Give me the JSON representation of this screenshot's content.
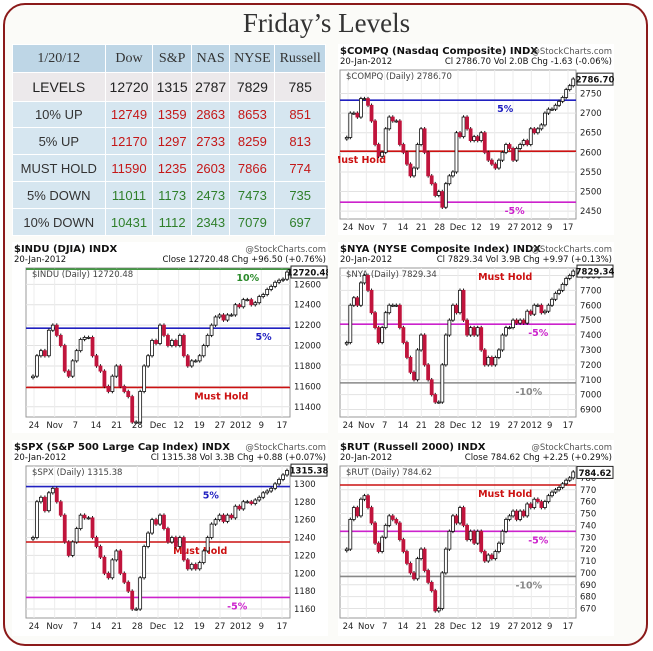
{
  "title": "Friday’s Levels",
  "table": {
    "date": "1/20/12",
    "headers": [
      "Dow",
      "S&P",
      "NAS",
      "NYSE",
      "Russell"
    ],
    "rows": [
      {
        "label": "LEVELS",
        "values": [
          "12720",
          "1315",
          "2787",
          "7829",
          "785"
        ],
        "type": "level"
      },
      {
        "label": "10% UP",
        "values": [
          "12749",
          "1359",
          "2863",
          "8653",
          "851"
        ],
        "type": "up"
      },
      {
        "label": "5% UP",
        "values": [
          "12170",
          "1297",
          "2733",
          "8259",
          "813"
        ],
        "type": "up"
      },
      {
        "label": "MUST HOLD",
        "values": [
          "11590",
          "1235",
          "2603",
          "7866",
          "774"
        ],
        "type": "up"
      },
      {
        "label": "5% DOWN",
        "values": [
          "11011",
          "1173",
          "2473",
          "7473",
          "735"
        ],
        "type": "down"
      },
      {
        "label": "10% DOWN",
        "values": [
          "10431",
          "1112",
          "2343",
          "7079",
          "697"
        ],
        "type": "down"
      }
    ]
  },
  "chart_data": [
    {
      "type": "candlestick",
      "symbol": "$COMPQ",
      "title": "$COMPQ (Nasdaq Composite) INDX",
      "source": "@StockCharts.com",
      "date": "20-Jan-2012",
      "stats": "Cl 2786.70  Vol 2.0B  Chg -1.63 (-0.06%)",
      "legend": "$COMPQ (Daily) 2786.70",
      "last": 2786.7,
      "last_label": "2786.70",
      "ylim": [
        2430,
        2810
      ],
      "yticks": [
        2450,
        2500,
        2550,
        2600,
        2650,
        2700,
        2750
      ],
      "xticks": [
        "24",
        "Nov",
        "7",
        "14",
        "21",
        "28",
        "Dec",
        "12",
        "19",
        "27",
        "2012",
        "9",
        "17"
      ],
      "levels": [
        {
          "value": 2733,
          "label": "5%",
          "color": "#2020c0"
        },
        {
          "value": 2603,
          "label": "Must Hold",
          "color": "#cc1111"
        },
        {
          "value": 2473,
          "label": "-5%",
          "color": "#cc22cc"
        }
      ],
      "closes": [
        2638,
        2700,
        2700,
        2690,
        2737,
        2737,
        2720,
        2680,
        2620,
        2590,
        2600,
        2660,
        2690,
        2680,
        2680,
        2620,
        2600,
        2570,
        2540,
        2560,
        2620,
        2660,
        2600,
        2540,
        2520,
        2490,
        2500,
        2460,
        2520,
        2540,
        2550,
        2650,
        2640,
        2690,
        2660,
        2630,
        2640,
        2630,
        2650,
        2600,
        2580,
        2570,
        2560,
        2580,
        2600,
        2620,
        2610,
        2580,
        2610,
        2620,
        2630,
        2620,
        2660,
        2650,
        2660,
        2670,
        2700,
        2710,
        2710,
        2720,
        2730,
        2740,
        2760,
        2770,
        2787
      ]
    },
    {
      "type": "candlestick",
      "symbol": "$INDU",
      "title": "$INDU (DJIA) INDX",
      "source": "@StockCharts.com",
      "date": "20-Jan-2012",
      "stats": "Close 12720.48  Chg +96.50 (+0.76%)",
      "legend": "$INDU (Daily) 12720.48",
      "last": 12720.48,
      "last_label": "12720.48",
      "ylim": [
        11300,
        12760
      ],
      "yticks": [
        11400,
        11600,
        11800,
        12000,
        12200,
        12400,
        12600
      ],
      "xticks": [
        "24",
        "Nov",
        "7",
        "14",
        "21",
        "28",
        "Dec",
        "12",
        "19",
        "27",
        "2012",
        "9",
        "17"
      ],
      "levels": [
        {
          "value": 12749,
          "label": "10%",
          "color": "#2a8a2a"
        },
        {
          "value": 12170,
          "label": "5%",
          "color": "#2020c0"
        },
        {
          "value": 11590,
          "label": "Must Hold",
          "color": "#cc1111"
        }
      ],
      "closes": [
        11700,
        11900,
        11950,
        11900,
        12150,
        12200,
        12100,
        12000,
        11750,
        11700,
        11850,
        11950,
        12060,
        12080,
        12080,
        11900,
        11800,
        11750,
        11600,
        11550,
        11700,
        11800,
        11600,
        11550,
        11500,
        11250,
        11250,
        11550,
        11800,
        11900,
        12050,
        12020,
        12200,
        12100,
        12000,
        12050,
        12000,
        12100,
        11900,
        11800,
        11850,
        11850,
        11900,
        12000,
        12100,
        12200,
        12280,
        12300,
        12250,
        12300,
        12300,
        12400,
        12380,
        12450,
        12450,
        12400,
        12420,
        12480,
        12500,
        12550,
        12580,
        12620,
        12640,
        12650,
        12720
      ]
    },
    {
      "type": "candlestick",
      "symbol": "$NYA",
      "title": "$NYA (NYSE Composite Index) INDX",
      "source": "@StockCharts.com",
      "date": "20-Jan-2012",
      "stats": "Cl 7829.34  Vol 3.9B  Chg +9.97 (+0.13%)",
      "legend": "$NYA (Daily) 7829.34",
      "last": 7829.34,
      "last_label": "7829.34",
      "ylim": [
        6850,
        7850
      ],
      "yticks": [
        6900,
        7000,
        7100,
        7200,
        7300,
        7400,
        7500,
        7600,
        7700,
        7800
      ],
      "xticks": [
        "24",
        "Nov",
        "7",
        "14",
        "21",
        "28",
        "Dec",
        "12",
        "19",
        "27",
        "2012",
        "9",
        "17"
      ],
      "levels": [
        {
          "value": 7866,
          "label": "Must Hold",
          "color": "#cc1111"
        },
        {
          "value": 7473,
          "label": "-5%",
          "color": "#cc22cc"
        },
        {
          "value": 7079,
          "label": "-10%",
          "color": "#888888"
        }
      ],
      "closes": [
        7350,
        7600,
        7650,
        7600,
        7750,
        7800,
        7700,
        7550,
        7450,
        7350,
        7450,
        7550,
        7600,
        7600,
        7600,
        7450,
        7350,
        7250,
        7150,
        7100,
        7300,
        7400,
        7200,
        7100,
        7000,
        6950,
        6950,
        7200,
        7400,
        7500,
        7600,
        7550,
        7700,
        7500,
        7400,
        7450,
        7400,
        7450,
        7300,
        7200,
        7250,
        7200,
        7250,
        7300,
        7400,
        7450,
        7450,
        7500,
        7480,
        7500,
        7480,
        7560,
        7540,
        7600,
        7600,
        7550,
        7560,
        7600,
        7640,
        7680,
        7700,
        7740,
        7780,
        7800,
        7829
      ]
    },
    {
      "type": "candlestick",
      "symbol": "$SPX",
      "title": "$SPX (S&P 500 Large Cap Index) INDX",
      "source": "@StockCharts.com",
      "date": "20-Jan-2012",
      "stats": "Cl 1315.38  Vol 3.3B  Chg +0.88 (+0.07%)",
      "legend": "$SPX (Daily) 1315.38",
      "last": 1315.38,
      "last_label": "1315.38",
      "ylim": [
        1150,
        1320
      ],
      "yticks": [
        1160,
        1180,
        1200,
        1220,
        1240,
        1260,
        1280,
        1300
      ],
      "xticks": [
        "24",
        "Nov",
        "7",
        "14",
        "21",
        "28",
        "Dec",
        "12",
        "19",
        "27",
        "2012",
        "9",
        "17"
      ],
      "levels": [
        {
          "value": 1297,
          "label": "5%",
          "color": "#2020c0"
        },
        {
          "value": 1235,
          "label": "Must Hold",
          "color": "#cc1111"
        },
        {
          "value": 1173,
          "label": "-5%",
          "color": "#cc22cc"
        }
      ],
      "closes": [
        1240,
        1280,
        1285,
        1270,
        1290,
        1295,
        1280,
        1265,
        1235,
        1220,
        1235,
        1250,
        1265,
        1262,
        1262,
        1240,
        1230,
        1218,
        1200,
        1195,
        1215,
        1225,
        1200,
        1190,
        1180,
        1160,
        1160,
        1195,
        1230,
        1245,
        1260,
        1255,
        1265,
        1250,
        1235,
        1240,
        1230,
        1240,
        1215,
        1205,
        1210,
        1205,
        1212,
        1225,
        1240,
        1255,
        1260,
        1265,
        1258,
        1265,
        1262,
        1275,
        1272,
        1280,
        1280,
        1278,
        1282,
        1285,
        1290,
        1292,
        1295,
        1300,
        1305,
        1310,
        1315
      ]
    },
    {
      "type": "candlestick",
      "symbol": "$RUT",
      "title": "$RUT (Russell 2000) INDX",
      "source": "@StockCharts.com",
      "date": "20-Jan-2012",
      "stats": "Close 784.62  Chg +2.25 (+0.29%)",
      "legend": "$RUT (Daily) 784.62",
      "last": 784.62,
      "last_label": "784.62",
      "ylim": [
        662,
        790
      ],
      "yticks": [
        670,
        680,
        690,
        700,
        710,
        720,
        730,
        740,
        750,
        760,
        770,
        780
      ],
      "xticks": [
        "24",
        "Nov",
        "7",
        "14",
        "21",
        "28",
        "Dec",
        "12",
        "19",
        "27",
        "2012",
        "9",
        "17"
      ],
      "levels": [
        {
          "value": 774,
          "label": "Must Hold",
          "color": "#cc1111"
        },
        {
          "value": 735,
          "label": "-5%",
          "color": "#cc22cc"
        },
        {
          "value": 697,
          "label": "-10%",
          "color": "#888888"
        }
      ],
      "closes": [
        720,
        745,
        755,
        748,
        762,
        765,
        755,
        742,
        725,
        718,
        730,
        740,
        748,
        745,
        742,
        728,
        718,
        708,
        700,
        695,
        712,
        720,
        702,
        692,
        685,
        668,
        670,
        700,
        720,
        735,
        748,
        742,
        755,
        740,
        728,
        735,
        725,
        735,
        718,
        710,
        715,
        712,
        718,
        725,
        735,
        745,
        748,
        752,
        745,
        752,
        748,
        758,
        755,
        762,
        760,
        755,
        760,
        765,
        768,
        770,
        772,
        775,
        778,
        780,
        785
      ]
    }
  ]
}
